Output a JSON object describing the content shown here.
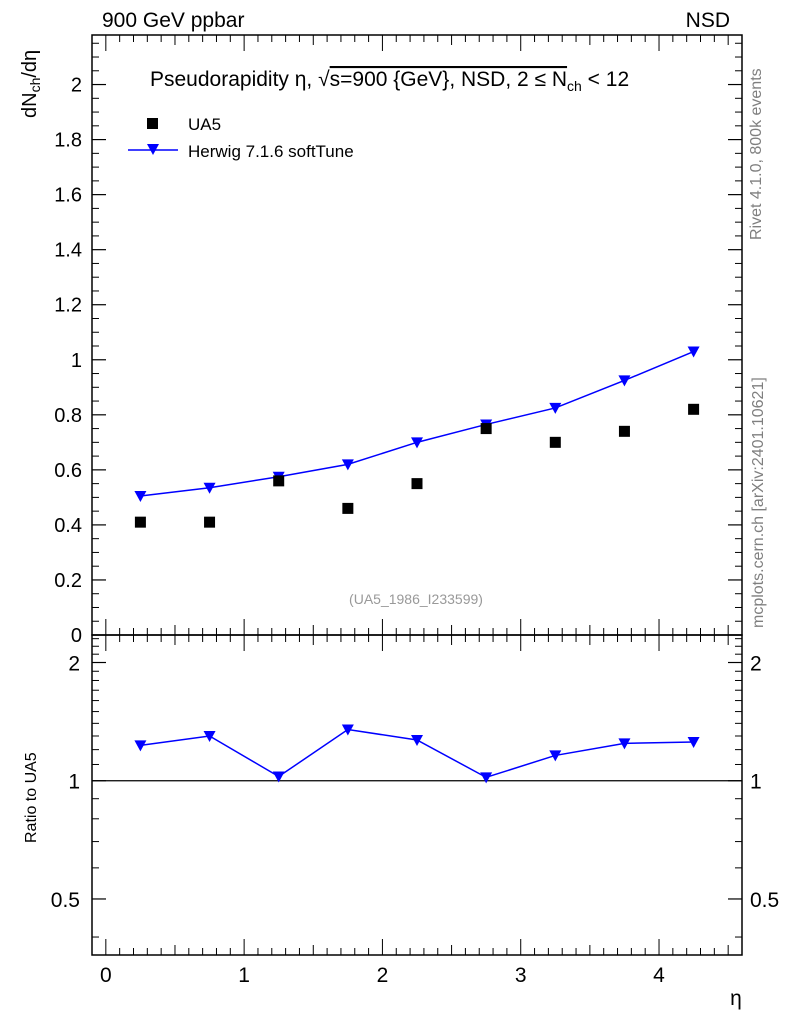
{
  "header": {
    "left": "900 GeV ppbar",
    "right": "NSD"
  },
  "side_text": {
    "rivet": "Rivet 4.1.0,  800k events",
    "mcplots": "mcplots.cern.ch [arXiv:2401.10621]"
  },
  "colors": {
    "mc": "#0000ff",
    "data": "#000000",
    "watermark": "#7f7f7f"
  },
  "chart_data": [
    {
      "type": "scatter",
      "panel": "main",
      "title": "Pseudorapidity η, √s=900 {GeV}, NSD, 2 ≤ N_ch < 12",
      "title_parts": {
        "prefix": "Pseudorapidity η, ",
        "sqrt": "√",
        "s_rest": "s=900 {GeV}, NSD, 2 ≤ N",
        "sub": "ch",
        "suffix": " < 12"
      },
      "ylabel": "dN_ch/dη",
      "ylabel_parts": {
        "main": "dN",
        "sub": "ch",
        "rest": "/dη"
      },
      "xlabel": "η",
      "xlim": [
        -0.1,
        4.6
      ],
      "ylim": [
        0,
        2.18
      ],
      "yticks": [
        0,
        0.2,
        0.4,
        0.6,
        0.8,
        1,
        1.2,
        1.4,
        1.6,
        1.8,
        2
      ],
      "ytick_labels": [
        "0",
        "0.2",
        "0.4",
        "0.6",
        "0.8",
        "1",
        "1.2",
        "1.4",
        "1.6",
        "1.8",
        "2"
      ],
      "x": [
        0.25,
        0.75,
        1.25,
        1.75,
        2.25,
        2.75,
        3.25,
        3.75,
        4.25
      ],
      "series": [
        {
          "name": "UA5",
          "marker": "square",
          "line": false,
          "values": [
            0.41,
            0.41,
            0.56,
            0.46,
            0.55,
            0.75,
            0.7,
            0.74,
            0.82
          ]
        },
        {
          "name": "Herwig 7.1.6 softTune",
          "marker": "triangle-down",
          "line": true,
          "values": [
            0.505,
            0.535,
            0.575,
            0.62,
            0.7,
            0.765,
            0.825,
            0.925,
            1.03
          ]
        }
      ],
      "legend": [
        "UA5",
        "Herwig 7.1.6 softTune"
      ],
      "legend_position": "top-left",
      "annotation": "(UA5_1986_I233599)"
    },
    {
      "type": "line",
      "panel": "ratio",
      "ylabel": "Ratio to UA5",
      "xlabel": "η",
      "xticks": [
        0,
        1,
        2,
        3,
        4
      ],
      "xtick_labels": [
        "0",
        "1",
        "2",
        "3",
        "4"
      ],
      "ylim": [
        0.36,
        2.35
      ],
      "yscale": "log",
      "ytick_labels_left": [
        "0.5",
        "1",
        "2"
      ],
      "ytick_labels_right": [
        "0.5",
        "1",
        "2"
      ],
      "reference": 1,
      "x": [
        0.25,
        0.75,
        1.25,
        1.75,
        2.25,
        2.75,
        3.25,
        3.75,
        4.25
      ],
      "series": [
        {
          "name": "Herwig 7.1.6 softTune / UA5",
          "marker": "triangle-down",
          "values": [
            1.23,
            1.3,
            1.025,
            1.35,
            1.27,
            1.02,
            1.16,
            1.245,
            1.255
          ]
        }
      ]
    }
  ]
}
